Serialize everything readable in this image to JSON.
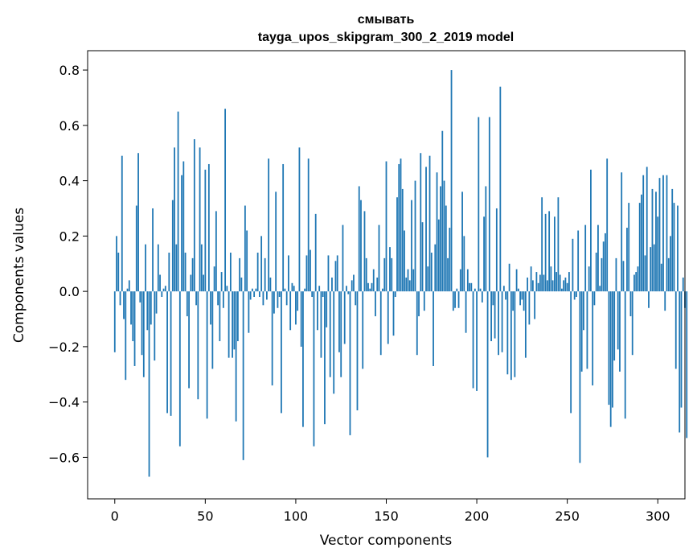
{
  "chart_data": {
    "type": "bar",
    "title": "смывать",
    "subtitle": "tayga_upos_skipgram_300_2_2019 model",
    "xlabel": "Vector components",
    "ylabel": "Components values",
    "xlim": [
      -15,
      315
    ],
    "ylim": [
      -0.75,
      0.87
    ],
    "xticks": [
      0,
      50,
      100,
      150,
      200,
      250,
      300
    ],
    "yticks": [
      -0.6,
      -0.4,
      -0.2,
      0.0,
      0.2,
      0.4,
      0.6,
      0.8
    ],
    "ytick_labels": [
      "−0.6",
      "−0.4",
      "−0.2",
      "0.0",
      "0.2",
      "0.4",
      "0.6",
      "0.8"
    ],
    "xtick_labels": [
      "0",
      "50",
      "100",
      "150",
      "200",
      "250",
      "300"
    ],
    "bar_color": "#1f77b4",
    "grid": false,
    "values": [
      -0.22,
      0.2,
      0.14,
      -0.05,
      0.49,
      -0.1,
      -0.32,
      0.01,
      0.04,
      -0.12,
      -0.18,
      -0.27,
      0.31,
      0.5,
      -0.04,
      -0.23,
      -0.31,
      0.17,
      -0.14,
      -0.67,
      -0.12,
      0.3,
      -0.25,
      -0.08,
      0.17,
      0.06,
      -0.02,
      0.01,
      0.02,
      -0.44,
      0.14,
      -0.45,
      0.33,
      0.52,
      0.17,
      0.65,
      -0.56,
      0.42,
      0.47,
      0.14,
      -0.09,
      -0.35,
      0.06,
      0.12,
      0.55,
      -0.05,
      -0.39,
      0.52,
      0.17,
      0.06,
      0.44,
      -0.46,
      0.46,
      -0.12,
      -0.28,
      0.09,
      0.29,
      -0.05,
      -0.18,
      0.07,
      -0.06,
      0.66,
      0.02,
      -0.24,
      0.14,
      -0.24,
      -0.21,
      -0.47,
      -0.18,
      0.12,
      0.05,
      -0.61,
      0.31,
      0.22,
      -0.15,
      -0.03,
      0.01,
      -0.02,
      0.01,
      0.14,
      -0.02,
      0.2,
      -0.05,
      0.12,
      -0.03,
      0.48,
      0.05,
      -0.34,
      -0.08,
      0.36,
      -0.06,
      -0.02,
      -0.44,
      0.46,
      0.01,
      -0.05,
      0.13,
      -0.14,
      0.03,
      0.02,
      -0.12,
      -0.07,
      0.52,
      -0.2,
      -0.49,
      0.01,
      0.13,
      0.48,
      0.15,
      -0.02,
      -0.56,
      0.28,
      -0.14,
      0.02,
      -0.24,
      -0.02,
      -0.48,
      -0.13,
      0.13,
      -0.31,
      0.05,
      -0.37,
      0.11,
      0.13,
      -0.22,
      -0.31,
      0.24,
      -0.19,
      0.02,
      -0.01,
      -0.52,
      0.04,
      0.06,
      -0.05,
      -0.43,
      0.38,
      0.33,
      -0.28,
      0.29,
      0.12,
      0.03,
      0.01,
      0.03,
      0.08,
      -0.09,
      0.05,
      0.24,
      -0.23,
      0.01,
      0.12,
      0.47,
      -0.19,
      0.16,
      0.12,
      -0.16,
      -0.02,
      0.34,
      0.46,
      0.48,
      0.37,
      0.22,
      0.05,
      0.08,
      0.04,
      0.33,
      0.08,
      0.4,
      -0.23,
      -0.09,
      0.5,
      0.25,
      -0.07,
      0.45,
      0.09,
      0.49,
      0.14,
      -0.27,
      0.17,
      0.43,
      0.26,
      0.38,
      0.58,
      0.4,
      0.31,
      0.12,
      0.23,
      0.8,
      -0.07,
      -0.06,
      0.01,
      -0.06,
      0.08,
      0.36,
      0.2,
      -0.15,
      0.08,
      0.03,
      0.03,
      -0.35,
      0.01,
      -0.36,
      0.63,
      0.01,
      -0.04,
      0.27,
      0.38,
      -0.6,
      0.63,
      -0.18,
      -0.05,
      -0.17,
      0.3,
      -0.23,
      0.74,
      -0.22,
      0.02,
      -0.03,
      -0.3,
      0.1,
      -0.32,
      -0.07,
      -0.31,
      0.08,
      0.01,
      -0.05,
      -0.03,
      -0.07,
      -0.24,
      0.05,
      -0.12,
      0.09,
      0.04,
      -0.1,
      0.07,
      0.03,
      0.06,
      0.34,
      0.06,
      0.28,
      0.04,
      0.29,
      0.09,
      0.04,
      0.27,
      0.07,
      0.34,
      0.06,
      0.01,
      0.04,
      0.05,
      0.03,
      0.07,
      -0.44,
      0.19,
      -0.03,
      -0.02,
      0.22,
      -0.62,
      -0.29,
      -0.14,
      0.24,
      -0.28,
      0.09,
      0.44,
      -0.34,
      -0.05,
      0.14,
      0.24,
      0.02,
      0.12,
      0.18,
      0.21,
      0.48,
      -0.41,
      -0.49,
      -0.42,
      -0.25,
      0.12,
      -0.21,
      -0.29,
      0.43,
      0.11,
      -0.46,
      0.23,
      0.32,
      -0.09,
      -0.23,
      0.06,
      0.07,
      0.09,
      0.32,
      0.35,
      0.42,
      0.13,
      0.45,
      -0.06,
      0.16,
      0.37,
      0.17,
      0.36,
      0.27,
      0.41,
      0.1,
      0.42,
      -0.07,
      0.42,
      0.12,
      0.2,
      0.37,
      0.32,
      -0.28,
      0.31,
      -0.51,
      -0.42,
      0.05,
      -0.06,
      -0.53
    ]
  }
}
